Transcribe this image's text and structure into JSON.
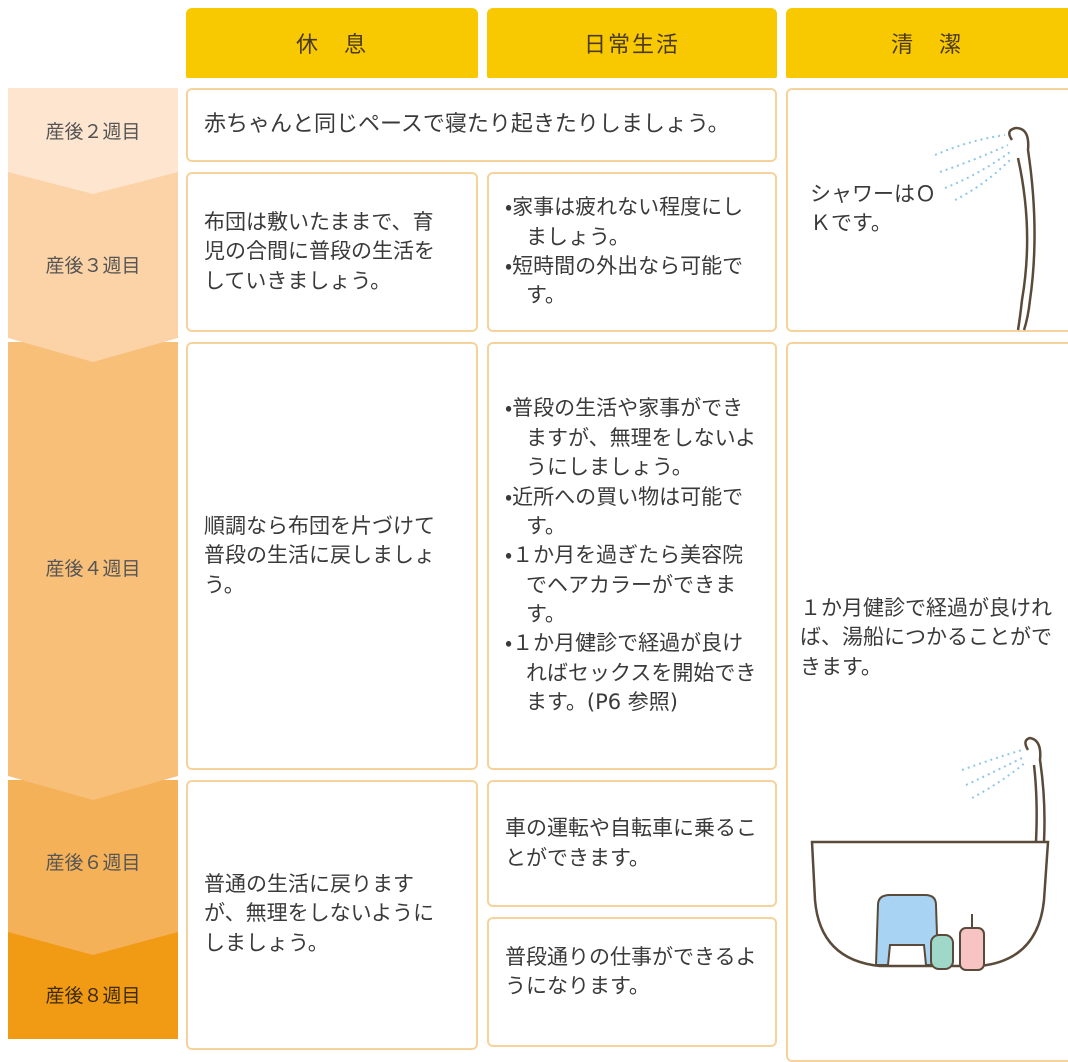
{
  "table": {
    "headers": [
      "休　息",
      "日常生活",
      "清　潔"
    ],
    "periods": [
      "産後２週目",
      "産後３週目",
      "産後４週目",
      "産後６週目",
      "産後８週目"
    ],
    "rest": [
      "赤ちゃんと同じペースで寝たり起きたりしましょう。",
      "布団は敷いたままで、育児の合間に普段の生活をしていきましょう。",
      "順調なら布団を片づけて普段の生活に戻しましょう。",
      "普通の生活に戻りますが、無理をしないようにしましょう。"
    ],
    "daily": [
      [
        "・家事は疲れない程度にしましょう。",
        "・短時間の外出なら可能です。"
      ],
      [
        "・普段の生活や家事ができますが、無理をしないようにしましょう。",
        "・近所への買い物は可能です。",
        "・１か月を過ぎたら美容院でヘアカラーができます。",
        "・１か月健診で経過が良ければセックスを開始できます。(P6 参照)"
      ],
      [
        "車の運転や自転車に乗ることができます。"
      ],
      [
        "普段通りの仕事ができるようになります。"
      ]
    ],
    "hygiene": [
      "シャワーはＯＫです。",
      "１か月健診で経過が良ければ、湯船につかることができます。"
    ]
  }
}
